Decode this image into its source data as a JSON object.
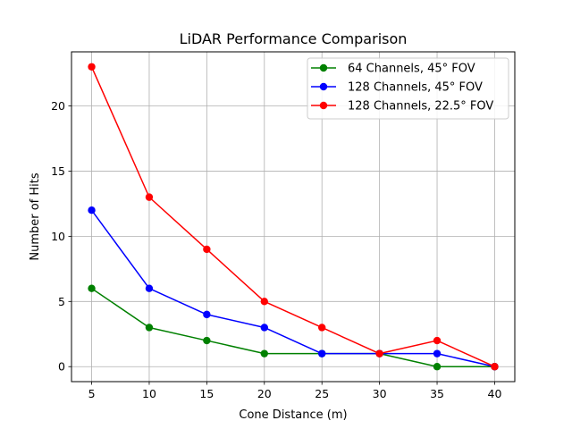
{
  "chart_data": {
    "type": "line",
    "title": "LiDAR Performance Comparison",
    "xlabel": "Cone Distance (m)",
    "ylabel": "Number of Hits",
    "x": [
      5,
      10,
      15,
      20,
      25,
      30,
      35,
      40
    ],
    "xticks": [
      "5",
      "10",
      "15",
      "20",
      "25",
      "30",
      "35",
      "40"
    ],
    "yticks": [
      "0",
      "5",
      "10",
      "15",
      "20"
    ],
    "ylim": [
      -1.15,
      24.15
    ],
    "xlim": [
      3.25,
      41.75
    ],
    "grid": true,
    "legend_position": "top-right",
    "series": [
      {
        "name": "64 Channels, 45° FOV",
        "color": "#008000",
        "values": [
          6,
          3,
          2,
          1,
          1,
          1,
          0,
          0
        ]
      },
      {
        "name": "128 Channels, 45° FOV",
        "color": "#0000ff",
        "values": [
          12,
          6,
          4,
          3,
          1,
          1,
          1,
          0
        ]
      },
      {
        "name": "128 Channels, 22.5° FOV",
        "color": "#ff0000",
        "values": [
          23,
          13,
          9,
          5,
          3,
          1,
          2,
          0
        ]
      }
    ]
  }
}
